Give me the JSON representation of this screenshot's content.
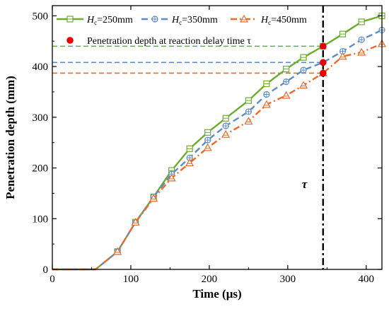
{
  "chart_data": {
    "type": "line",
    "xlabel": "Time (μs)",
    "ylabel": "Penetration depth (mm)",
    "xlim": [
      0,
      420
    ],
    "ylim": [
      0,
      520
    ],
    "xticks": [
      0,
      100,
      200,
      300,
      400
    ],
    "yticks": [
      0,
      100,
      200,
      300,
      400,
      500
    ],
    "grid": false,
    "legend_position": "top",
    "series": [
      {
        "name_italic": "H",
        "name_sub": "c",
        "name_rest": "=250mm",
        "color": "#6aad2b",
        "dash": "solid",
        "marker": "square",
        "points": [
          [
            0,
            0
          ],
          [
            55,
            0
          ],
          [
            83,
            35
          ],
          [
            106,
            93
          ],
          [
            129,
            143
          ],
          [
            152,
            195
          ],
          [
            175,
            238
          ],
          [
            198,
            270
          ],
          [
            221,
            298
          ],
          [
            250,
            333
          ],
          [
            273,
            366
          ],
          [
            298,
            395
          ],
          [
            320,
            418
          ],
          [
            345,
            440
          ],
          [
            370,
            464
          ],
          [
            394,
            488
          ],
          [
            420,
            500
          ]
        ]
      },
      {
        "name_italic": "H",
        "name_sub": "c",
        "name_rest": "=350mm",
        "color": "#5b8ec9",
        "dash": "dash",
        "marker": "circle-plus",
        "points": [
          [
            0,
            0
          ],
          [
            55,
            0
          ],
          [
            83,
            35
          ],
          [
            106,
            93
          ],
          [
            129,
            143
          ],
          [
            152,
            188
          ],
          [
            175,
            220
          ],
          [
            198,
            255
          ],
          [
            221,
            283
          ],
          [
            250,
            311
          ],
          [
            273,
            345
          ],
          [
            298,
            370
          ],
          [
            320,
            393
          ],
          [
            345,
            408
          ],
          [
            370,
            430
          ],
          [
            394,
            453
          ],
          [
            420,
            472
          ]
        ]
      },
      {
        "name_italic": "H",
        "name_sub": "c",
        "name_rest": "=450mm",
        "color": "#ec6a26",
        "dash": "dashdot",
        "marker": "triangle",
        "points": [
          [
            0,
            0
          ],
          [
            55,
            0
          ],
          [
            83,
            35
          ],
          [
            106,
            93
          ],
          [
            129,
            140
          ],
          [
            152,
            180
          ],
          [
            175,
            210
          ],
          [
            198,
            240
          ],
          [
            221,
            266
          ],
          [
            250,
            292
          ],
          [
            273,
            325
          ],
          [
            298,
            343
          ],
          [
            320,
            363
          ],
          [
            345,
            387
          ],
          [
            370,
            420
          ],
          [
            394,
            428
          ],
          [
            420,
            445
          ]
        ]
      }
    ],
    "reaction_points": {
      "legend_label": "Penetration depth at reaction delay time τ",
      "color": "#e60000",
      "x": 345,
      "values": [
        440,
        408,
        387
      ]
    },
    "reference_line": {
      "x": 345,
      "label": "τ",
      "label_y": 160
    }
  }
}
